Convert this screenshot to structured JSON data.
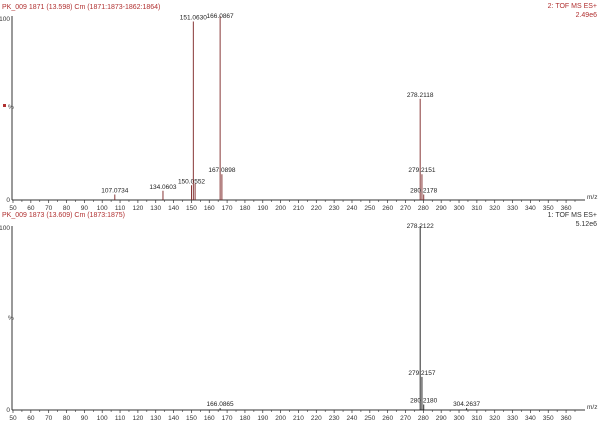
{
  "panels": [
    {
      "header_left": "PK_009 1871 (13.598) Cm (1871:1873-1862:1864)",
      "header_right_line1": "2: TOF MS ES+",
      "header_right_line2": "2.49e6",
      "y_top_label": "100",
      "y_mid_label": "%",
      "y_zero_label": "0",
      "x_unit": "m/z"
    },
    {
      "header_left": "PK_009 1873 (13.609) Cm (1873:1875)",
      "header_right_line1": "1: TOF MS ES+",
      "header_right_line2": "5.12e6",
      "y_top_label": "100",
      "y_mid_label": "%",
      "y_zero_label": "0",
      "x_unit": "m/z"
    }
  ],
  "chart_data": [
    {
      "type": "bar",
      "xlim": [
        50,
        365
      ],
      "ylim": [
        0,
        100
      ],
      "x_ticks": [
        50,
        60,
        70,
        80,
        90,
        100,
        110,
        120,
        130,
        140,
        150,
        160,
        170,
        180,
        190,
        200,
        210,
        220,
        230,
        240,
        250,
        260,
        270,
        280,
        290,
        300,
        310,
        320,
        330,
        340,
        350,
        360
      ],
      "peaks": [
        {
          "mz": 107.0734,
          "intensity": 3,
          "label": "107.0734"
        },
        {
          "mz": 134.0603,
          "intensity": 5,
          "label": "134.0603"
        },
        {
          "mz": 150.0552,
          "intensity": 8,
          "label": "150.0552"
        },
        {
          "mz": 151.063,
          "intensity": 97,
          "label": "151.0630"
        },
        {
          "mz": 152.06,
          "intensity": 9,
          "label": ""
        },
        {
          "mz": 166.0867,
          "intensity": 100,
          "label": "166.0867"
        },
        {
          "mz": 167.0898,
          "intensity": 14,
          "label": "167.0898"
        },
        {
          "mz": 278.2118,
          "intensity": 55,
          "label": "278.2118"
        },
        {
          "mz": 279.2151,
          "intensity": 14,
          "label": "279.2151"
        },
        {
          "mz": 280.2178,
          "intensity": 3,
          "label": "280.2178"
        }
      ]
    },
    {
      "type": "bar",
      "xlim": [
        50,
        365
      ],
      "ylim": [
        0,
        100
      ],
      "x_ticks": [
        50,
        60,
        70,
        80,
        90,
        100,
        110,
        120,
        130,
        140,
        150,
        160,
        170,
        180,
        190,
        200,
        210,
        220,
        230,
        240,
        250,
        260,
        270,
        280,
        290,
        300,
        310,
        320,
        330,
        340,
        350,
        360
      ],
      "peaks": [
        {
          "mz": 166.0865,
          "intensity": 1,
          "label": "166.0865"
        },
        {
          "mz": 278.2122,
          "intensity": 100,
          "label": "278.2122"
        },
        {
          "mz": 279.2157,
          "intensity": 18,
          "label": "279.2157"
        },
        {
          "mz": 280.218,
          "intensity": 3,
          "label": "280.2180"
        },
        {
          "mz": 304.2637,
          "intensity": 1,
          "label": "304.2637"
        }
      ]
    }
  ]
}
